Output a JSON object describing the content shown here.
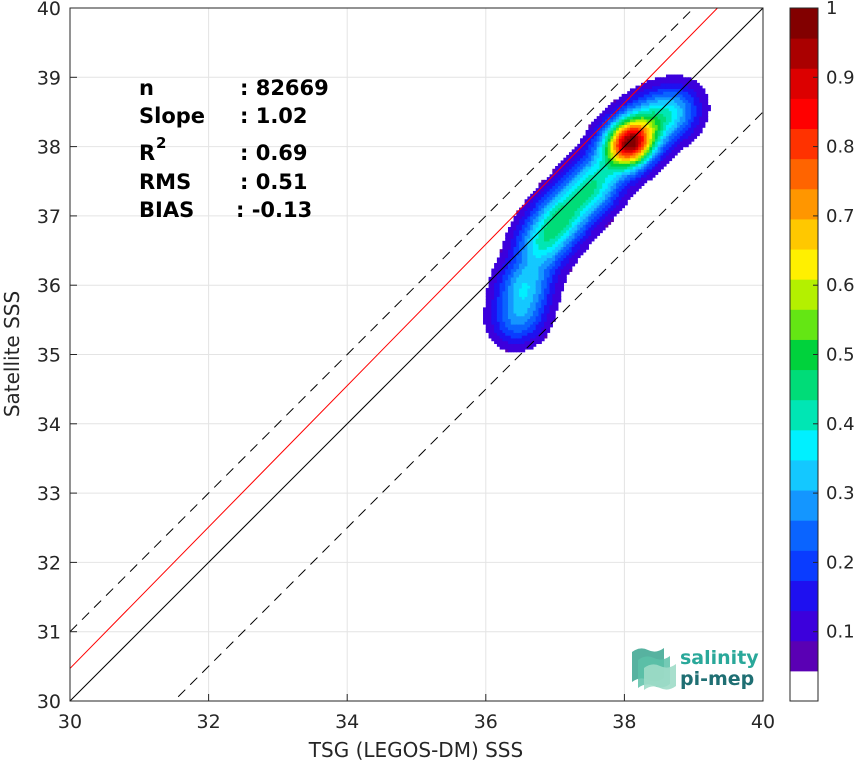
{
  "chart_data": {
    "type": "heatmap",
    "title": "",
    "xlabel": "TSG (LEGOS-DM) SSS",
    "ylabel": "Satellite SSS",
    "xlim": [
      30,
      40
    ],
    "ylim": [
      30,
      40
    ],
    "xticks": [
      "30",
      "32",
      "34",
      "36",
      "38",
      "40"
    ],
    "yticks": [
      "30",
      "31",
      "32",
      "33",
      "34",
      "35",
      "36",
      "37",
      "38",
      "39",
      "40"
    ],
    "grid": true,
    "stats": [
      {
        "label": "n",
        "value": ": 82669"
      },
      {
        "label": "Slope",
        "value": ": 1.02"
      },
      {
        "label": "R",
        "label_sup": "2",
        "value": ": 0.69"
      },
      {
        "label": "RMS",
        "value": ": 0.51"
      },
      {
        "label": "BIAS",
        "value": ": -0.13"
      }
    ],
    "lines": {
      "one_to_one": {
        "slope": 1,
        "intercept": 0,
        "color": "#000000"
      },
      "regression": {
        "slope": 1.02,
        "intercept": -0.13,
        "color": "#ff0000"
      },
      "bounds": [
        {
          "slope": 1,
          "intercept": 1,
          "style": "dashed",
          "color": "#000000"
        },
        {
          "slope": 1,
          "intercept": -1.5,
          "style": "dashed",
          "color": "#000000"
        }
      ]
    },
    "density": {
      "description_free": true,
      "levels": [
        0.05,
        0.1,
        0.15,
        0.2,
        0.25,
        0.3,
        0.35,
        0.4,
        0.45,
        0.5,
        0.55,
        0.6,
        0.65,
        0.7,
        0.75,
        0.8,
        0.85,
        0.9,
        0.95
      ],
      "mode": {
        "x": 38.08,
        "y": 38.05
      },
      "ridge": [
        {
          "x": 36.45,
          "y": 35.5,
          "w": 0.7
        },
        {
          "x": 36.55,
          "y": 36.0,
          "w": 0.85
        },
        {
          "x": 36.8,
          "y": 36.6,
          "w": 1.0
        },
        {
          "x": 37.1,
          "y": 37.0,
          "w": 1.1
        },
        {
          "x": 37.5,
          "y": 37.4,
          "w": 1.15
        },
        {
          "x": 37.9,
          "y": 37.9,
          "w": 1.1
        },
        {
          "x": 38.3,
          "y": 38.3,
          "w": 1.0
        },
        {
          "x": 38.7,
          "y": 38.5,
          "w": 0.8
        }
      ]
    },
    "colorbar": {
      "min": 0,
      "max": 1,
      "ticks": [
        "0.1",
        "0.2",
        "0.3",
        "0.4",
        "0.5",
        "0.6",
        "0.7",
        "0.8",
        "0.9",
        "1"
      ],
      "colors": [
        "#ffffff",
        "#5a00b4",
        "#3c00dc",
        "#1e10f0",
        "#0a3cff",
        "#0a64ff",
        "#1496ff",
        "#14c8ff",
        "#00f0ff",
        "#00e6b4",
        "#00dc78",
        "#00d23c",
        "#64e614",
        "#b4f000",
        "#fff000",
        "#ffc800",
        "#ff9600",
        "#ff6400",
        "#ff3200",
        "#ff0000",
        "#dc0000",
        "#aa0000",
        "#820000"
      ]
    },
    "logo": {
      "line1": "salinity",
      "line2": "pi-mep"
    }
  }
}
